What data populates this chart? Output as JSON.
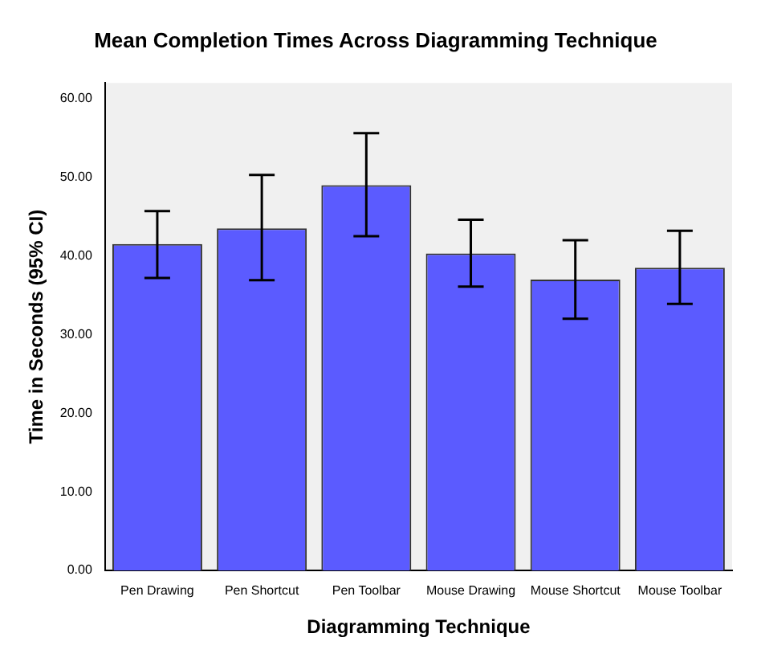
{
  "chart_data": {
    "type": "bar",
    "title": "Mean Completion Times Across Diagramming Technique",
    "xlabel": "Diagramming Technique",
    "ylabel": "Time in Seconds (95% CI)",
    "categories": [
      "Pen Drawing",
      "Pen Shortcut",
      "Pen Toolbar",
      "Mouse Drawing",
      "Mouse Shortcut",
      "Mouse Toolbar"
    ],
    "values": [
      41.5,
      43.5,
      49.0,
      40.3,
      37.0,
      38.5
    ],
    "errors": [
      [
        37.2,
        45.7
      ],
      [
        36.9,
        50.3
      ],
      [
        42.5,
        55.6
      ],
      [
        36.1,
        44.6
      ],
      [
        32.0,
        42.0
      ],
      [
        33.9,
        43.2
      ]
    ],
    "color": "#5b5bff",
    "ylim": [
      0,
      62
    ],
    "yticks": [
      {
        "value": 0,
        "label": "0.00"
      },
      {
        "value": 10,
        "label": "10.00"
      },
      {
        "value": 20,
        "label": "20.00"
      },
      {
        "value": 30,
        "label": "30.00"
      },
      {
        "value": 40,
        "label": "40.00"
      },
      {
        "value": 50,
        "label": "50.00"
      },
      {
        "value": 60,
        "label": "60.00"
      }
    ],
    "grid": false,
    "legend": false
  }
}
